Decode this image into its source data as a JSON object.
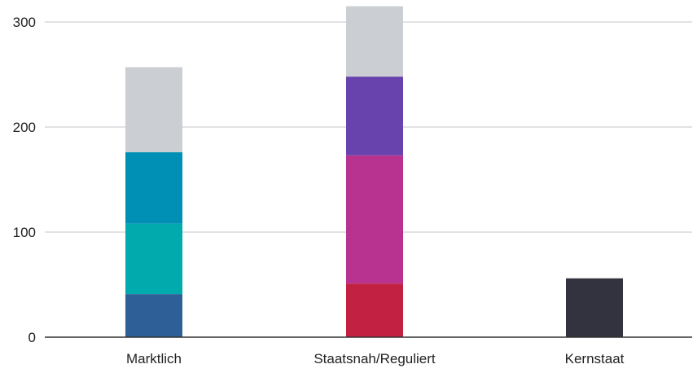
{
  "chart_data": {
    "type": "bar",
    "stacked": true,
    "categories": [
      "Marktlich",
      "Staatsnah/Reguliert",
      "Kernstaat"
    ],
    "ylim": [
      0,
      310
    ],
    "yticks": [
      0,
      100,
      200,
      300
    ],
    "grid": true,
    "segments": [
      [
        {
          "value": 41,
          "color": "#2e5f96"
        },
        {
          "value": 67,
          "color": "#00aaad"
        },
        {
          "value": 68,
          "color": "#008fb5"
        },
        {
          "value": 81,
          "color": "#cbced3"
        }
      ],
      [
        {
          "value": 51,
          "color": "#c22142"
        },
        {
          "value": 122,
          "color": "#b8338f"
        },
        {
          "value": 75,
          "color": "#6842ad"
        },
        {
          "value": 67,
          "color": "#cbced3"
        }
      ],
      [
        {
          "value": 56,
          "color": "#33333f"
        }
      ]
    ]
  },
  "colors": {
    "grid": "#d9d9dd",
    "axis": "#333333",
    "text": "#222222"
  }
}
